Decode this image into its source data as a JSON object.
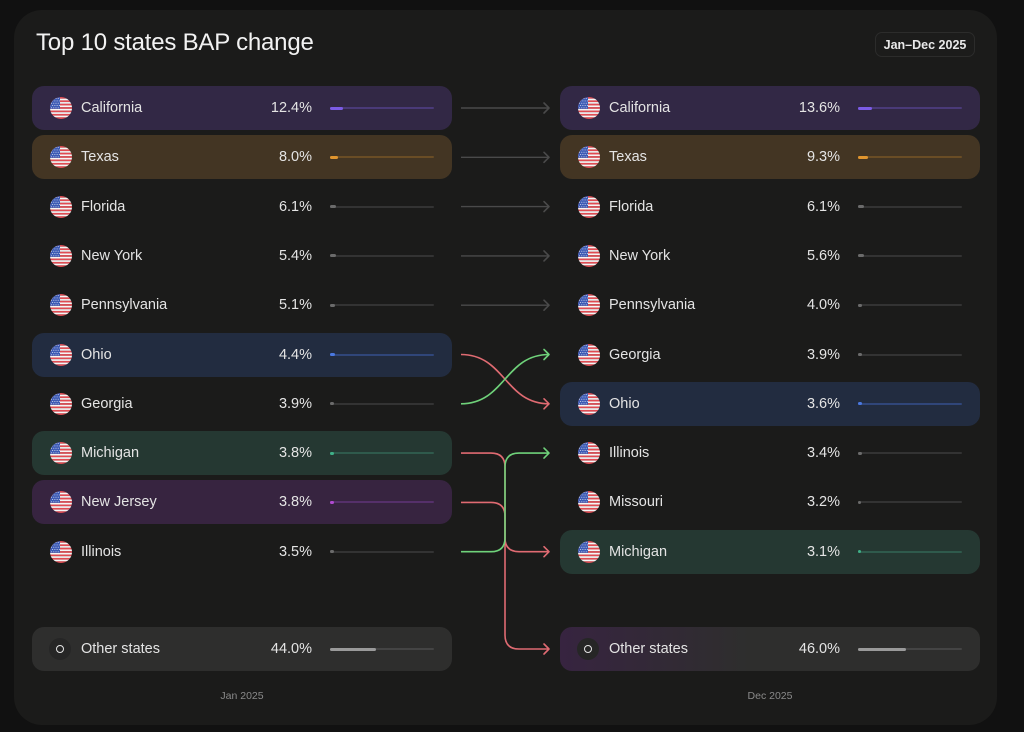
{
  "header": {
    "title": "Top 10 states BAP change",
    "date_range": "Jan–Dec 2025"
  },
  "colors": {
    "california": {
      "bg": "#322845",
      "bar": "#7c5ce6",
      "track": "#4a3a78"
    },
    "texas": {
      "bg": "#433523",
      "bar": "#e0952e",
      "track": "#6a4d25"
    },
    "ohio": {
      "bg": "#222c40",
      "bar": "#4a78e0",
      "track": "#30467a"
    },
    "michigan": {
      "bg": "#253832",
      "bar": "#3fb088",
      "track": "#2f5a4c"
    },
    "new_jersey": {
      "bg": "#372440",
      "bar": "#b04ad0",
      "track": "#55306a"
    },
    "other": {
      "bg": "#2e2e2d",
      "bar": "#9a9a9a",
      "track": "#444444"
    },
    "neutral": {
      "bg": "transparent",
      "bar": "#6b6b6b",
      "track": "#333333"
    },
    "up": "#6fd27a",
    "down": "#e06b72",
    "same": "#4a4a4a"
  },
  "chart_data": {
    "type": "table",
    "title": "Top 10 states BAP change",
    "period": "Jan–Dec 2025",
    "unit": "%",
    "columns": [
      {
        "label": "Jan 2025",
        "rows": [
          {
            "state": "California",
            "value": 12.4,
            "label": "12.4%",
            "highlight": "california"
          },
          {
            "state": "Texas",
            "value": 8.0,
            "label": "8.0%",
            "highlight": "texas"
          },
          {
            "state": "Florida",
            "value": 6.1,
            "label": "6.1%",
            "highlight": "neutral"
          },
          {
            "state": "New York",
            "value": 5.4,
            "label": "5.4%",
            "highlight": "neutral"
          },
          {
            "state": "Pennsylvania",
            "value": 5.1,
            "label": "5.1%",
            "highlight": "neutral"
          },
          {
            "state": "Ohio",
            "value": 4.4,
            "label": "4.4%",
            "highlight": "ohio"
          },
          {
            "state": "Georgia",
            "value": 3.9,
            "label": "3.9%",
            "highlight": "neutral"
          },
          {
            "state": "Michigan",
            "value": 3.8,
            "label": "3.8%",
            "highlight": "michigan"
          },
          {
            "state": "New Jersey",
            "value": 3.8,
            "label": "3.8%",
            "highlight": "new_jersey"
          },
          {
            "state": "Illinois",
            "value": 3.5,
            "label": "3.5%",
            "highlight": "neutral"
          }
        ],
        "other": {
          "state": "Other states",
          "value": 44.0,
          "label": "44.0%"
        }
      },
      {
        "label": "Dec 2025",
        "rows": [
          {
            "state": "California",
            "value": 13.6,
            "label": "13.6%",
            "highlight": "california"
          },
          {
            "state": "Texas",
            "value": 9.3,
            "label": "9.3%",
            "highlight": "texas"
          },
          {
            "state": "Florida",
            "value": 6.1,
            "label": "6.1%",
            "highlight": "neutral"
          },
          {
            "state": "New York",
            "value": 5.6,
            "label": "5.6%",
            "highlight": "neutral"
          },
          {
            "state": "Pennsylvania",
            "value": 4.0,
            "label": "4.0%",
            "highlight": "neutral"
          },
          {
            "state": "Georgia",
            "value": 3.9,
            "label": "3.9%",
            "highlight": "neutral"
          },
          {
            "state": "Ohio",
            "value": 3.6,
            "label": "3.6%",
            "highlight": "ohio"
          },
          {
            "state": "Illinois",
            "value": 3.4,
            "label": "3.4%",
            "highlight": "neutral"
          },
          {
            "state": "Missouri",
            "value": 3.2,
            "label": "3.2%",
            "highlight": "neutral"
          },
          {
            "state": "Michigan",
            "value": 3.1,
            "label": "3.1%",
            "highlight": "michigan"
          }
        ],
        "other": {
          "state": "Other states",
          "value": 46.0,
          "label": "46.0%",
          "tint_from": "new_jersey"
        }
      }
    ],
    "links": [
      {
        "from": 0,
        "to": 0,
        "kind": "same"
      },
      {
        "from": 1,
        "to": 1,
        "kind": "same"
      },
      {
        "from": 2,
        "to": 2,
        "kind": "same"
      },
      {
        "from": 3,
        "to": 3,
        "kind": "same"
      },
      {
        "from": 4,
        "to": 4,
        "kind": "same"
      },
      {
        "from": 5,
        "to": 6,
        "kind": "down"
      },
      {
        "from": 6,
        "to": 5,
        "kind": "up"
      },
      {
        "from": 7,
        "to": 9,
        "kind": "down"
      },
      {
        "from": 8,
        "to": "other",
        "kind": "down"
      },
      {
        "from": 9,
        "to": 7,
        "kind": "up"
      }
    ],
    "bar_scale_max": 100
  }
}
